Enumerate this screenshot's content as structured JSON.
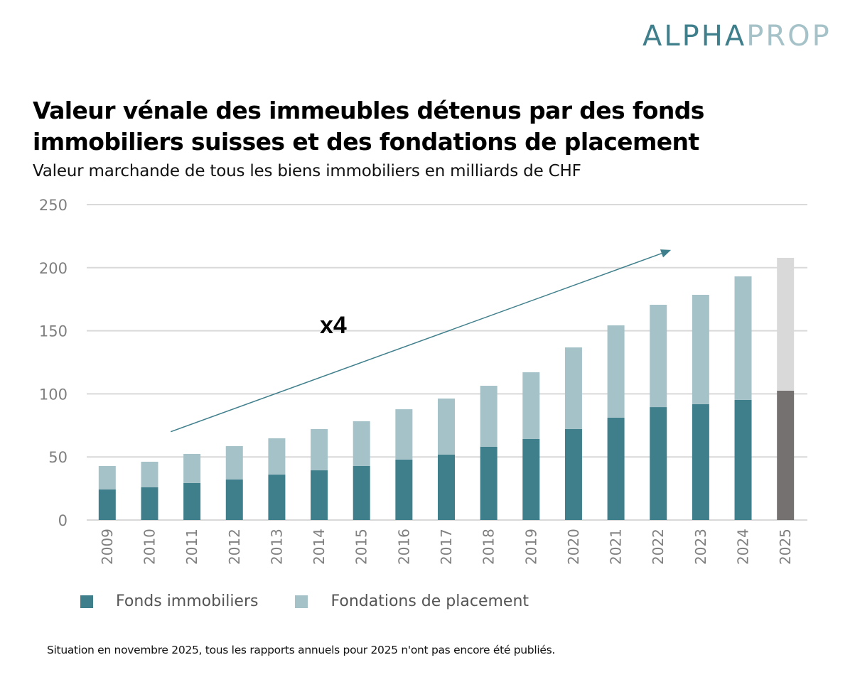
{
  "logo": {
    "part1": "ALPHA",
    "part2": "PROP"
  },
  "chart_data": {
    "type": "bar",
    "stacked": true,
    "title": "Valeur vénale des immeubles détenus par des fonds immobiliers suisses et des fondations de placement",
    "subtitle": "Valeur marchande de tous les biens immobiliers en milliards de CHF",
    "xlabel": "",
    "ylabel": "",
    "ylim": [
      0,
      250
    ],
    "yticks": [
      0,
      50,
      100,
      150,
      200,
      250
    ],
    "grid": true,
    "categories": [
      "2009",
      "2010",
      "2011",
      "2012",
      "2013",
      "2014",
      "2015",
      "2016",
      "2017",
      "2018",
      "2019",
      "2020",
      "2021",
      "2022",
      "2023",
      "2024",
      "2025"
    ],
    "series": [
      {
        "name": "Fonds immobiliers",
        "color": "#3f7f8c",
        "values": [
          24.2,
          25.9,
          29.3,
          32.1,
          36.0,
          39.4,
          42.8,
          47.9,
          51.8,
          58.0,
          64.2,
          72.1,
          81.1,
          89.5,
          91.8,
          95.2,
          102.5
        ]
      },
      {
        "name": "Fondations de placement",
        "color": "#a5c2c9",
        "values": [
          18.6,
          20.3,
          23.1,
          26.5,
          28.8,
          32.7,
          35.5,
          39.9,
          44.5,
          48.4,
          52.9,
          64.7,
          73.2,
          81.1,
          86.7,
          97.9,
          105.3
        ]
      }
    ],
    "highlight": {
      "category": "2025",
      "note": "provisional",
      "colors": [
        "#767171",
        "#d9d9d9"
      ]
    },
    "annotations": [
      {
        "type": "arrow",
        "label": "x4",
        "from": {
          "x": "2010.5",
          "y": 70
        },
        "to": {
          "x": "2022.3",
          "y": 214
        },
        "color": "#3f7f8c"
      }
    ],
    "legend": {
      "placement": "bottom-left"
    }
  },
  "footnote": "Situation en novembre 2025, tous les rapports annuels pour 2025 n'ont pas encore été publiés."
}
